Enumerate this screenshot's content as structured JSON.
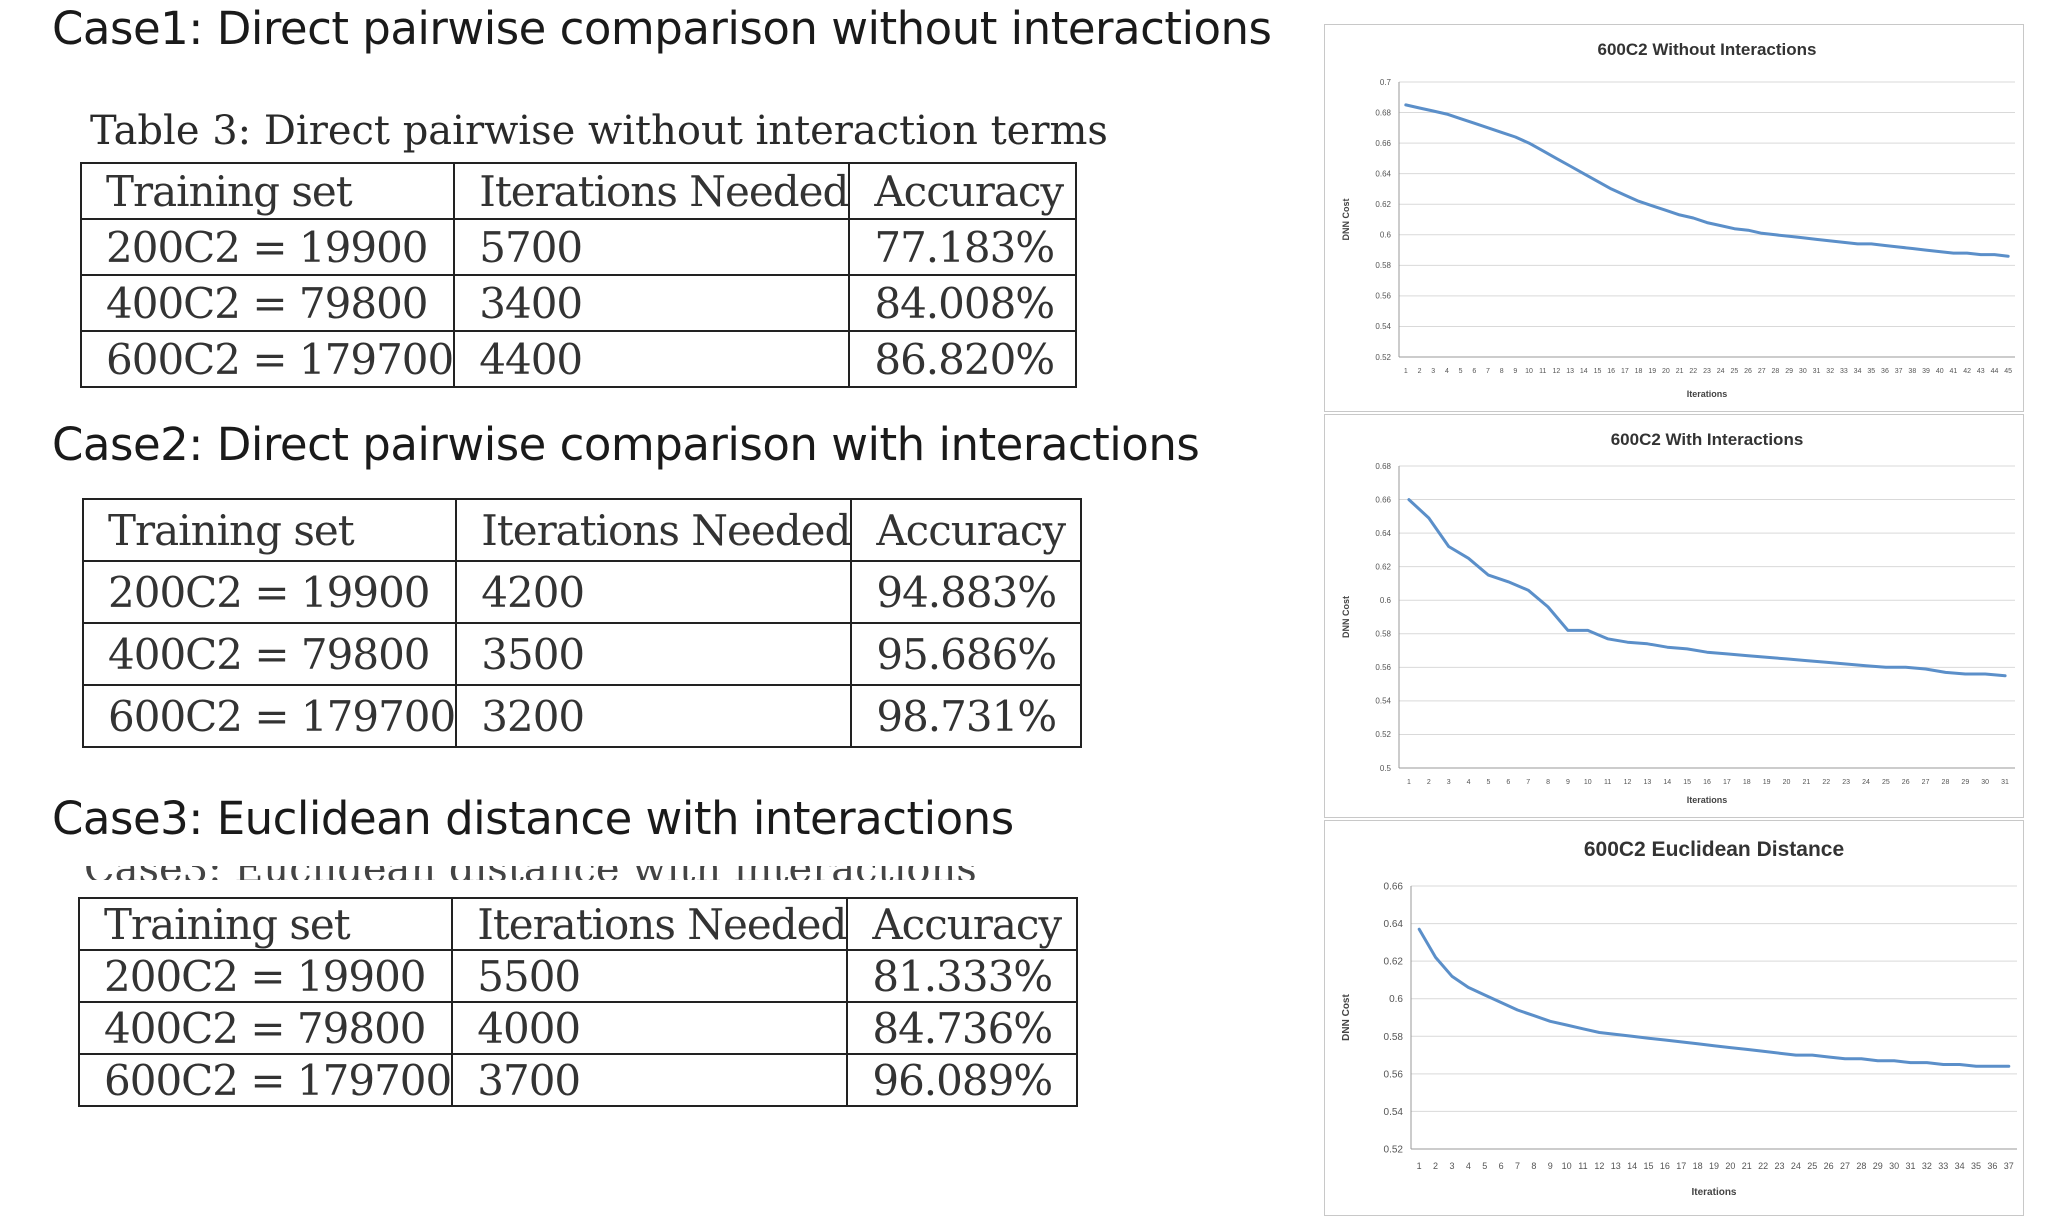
{
  "cases": [
    {
      "heading": "Case1: Direct pairwise comparison without interactions",
      "caption": "Table 3: Direct pairwise without interaction terms",
      "columns": [
        "Training set",
        "Iterations Needed",
        "Accuracy"
      ],
      "rows": [
        [
          "200C2 = 19900",
          "5700",
          "77.183%"
        ],
        [
          "400C2 = 79800",
          "3400",
          "84.008%"
        ],
        [
          "600C2 = 179700",
          "4400",
          "86.820%"
        ]
      ]
    },
    {
      "heading": "Case2: Direct pairwise comparison with interactions",
      "caption": "",
      "columns": [
        "Training set",
        "Iterations Needed",
        "Accuracy"
      ],
      "rows": [
        [
          "200C2 = 19900",
          "4200",
          "94.883%"
        ],
        [
          "400C2 = 79800",
          "3500",
          "95.686%"
        ],
        [
          "600C2 = 179700",
          "3200",
          "98.731%"
        ]
      ]
    },
    {
      "heading": "Case3: Euclidean distance with interactions",
      "caption": "",
      "columns": [
        "Training set",
        "Iterations Needed",
        "Accuracy"
      ],
      "rows": [
        [
          "200C2 = 19900",
          "5500",
          "81.333%"
        ],
        [
          "400C2 = 79800",
          "4000",
          "84.736%"
        ],
        [
          "600C2 = 179700",
          "3700",
          "96.089%"
        ]
      ]
    }
  ],
  "chart_data": [
    {
      "type": "line",
      "title": "600C2 Without Interactions",
      "xlabel": "Iterations",
      "ylabel": "DNN Cost",
      "grid": true,
      "color": "#5b8fc9",
      "ylim": [
        0.52,
        0.7
      ],
      "yticks": [
        "0.52",
        "0.54",
        "0.56",
        "0.58",
        "0.6",
        "0.62",
        "0.64",
        "0.66",
        "0.68",
        "0.7"
      ],
      "x": [
        1,
        2,
        3,
        4,
        5,
        6,
        7,
        8,
        9,
        10,
        11,
        12,
        13,
        14,
        15,
        16,
        17,
        18,
        19,
        20,
        21,
        22,
        23,
        24,
        25,
        26,
        27,
        28,
        29,
        30,
        31,
        32,
        33,
        34,
        35,
        36,
        37,
        38,
        39,
        40,
        41,
        42,
        43,
        44,
        45
      ],
      "values": [
        0.685,
        0.683,
        0.681,
        0.679,
        0.676,
        0.673,
        0.67,
        0.667,
        0.664,
        0.66,
        0.655,
        0.65,
        0.645,
        0.64,
        0.635,
        0.63,
        0.626,
        0.622,
        0.619,
        0.616,
        0.613,
        0.611,
        0.608,
        0.606,
        0.604,
        0.603,
        0.601,
        0.6,
        0.599,
        0.598,
        0.597,
        0.596,
        0.595,
        0.594,
        0.594,
        0.593,
        0.592,
        0.591,
        0.59,
        0.589,
        0.588,
        0.588,
        0.587,
        0.587,
        0.586
      ]
    },
    {
      "type": "line",
      "title": "600C2 With Interactions",
      "xlabel": "Iterations",
      "ylabel": "DNN Cost",
      "grid": true,
      "color": "#5b8fc9",
      "ylim": [
        0.5,
        0.68
      ],
      "yticks": [
        "0.5",
        "0.52",
        "0.54",
        "0.56",
        "0.58",
        "0.6",
        "0.62",
        "0.64",
        "0.66",
        "0.68"
      ],
      "x": [
        1,
        2,
        3,
        4,
        5,
        6,
        7,
        8,
        9,
        10,
        11,
        12,
        13,
        14,
        15,
        16,
        17,
        18,
        19,
        20,
        21,
        22,
        23,
        24,
        25,
        26,
        27,
        28,
        29,
        30,
        31
      ],
      "values": [
        0.66,
        0.649,
        0.632,
        0.625,
        0.615,
        0.611,
        0.606,
        0.596,
        0.582,
        0.582,
        0.577,
        0.575,
        0.574,
        0.572,
        0.571,
        0.569,
        0.568,
        0.567,
        0.566,
        0.565,
        0.564,
        0.563,
        0.562,
        0.561,
        0.56,
        0.56,
        0.559,
        0.557,
        0.556,
        0.556,
        0.555
      ]
    },
    {
      "type": "line",
      "title": "600C2 Euclidean Distance",
      "xlabel": "Iterations",
      "ylabel": "DNN Cost",
      "grid": true,
      "color": "#5b8fc9",
      "ylim": [
        0.52,
        0.66
      ],
      "yticks": [
        "0.52",
        "0.54",
        "0.56",
        "0.58",
        "0.6",
        "0.62",
        "0.64",
        "0.66"
      ],
      "x": [
        1,
        2,
        3,
        4,
        5,
        6,
        7,
        8,
        9,
        10,
        11,
        12,
        13,
        14,
        15,
        16,
        17,
        18,
        19,
        20,
        21,
        22,
        23,
        24,
        25,
        26,
        27,
        28,
        29,
        30,
        31,
        32,
        33,
        34,
        35,
        36,
        37
      ],
      "values": [
        0.637,
        0.622,
        0.612,
        0.606,
        0.602,
        0.598,
        0.594,
        0.591,
        0.588,
        0.586,
        0.584,
        0.582,
        0.581,
        0.58,
        0.579,
        0.578,
        0.577,
        0.576,
        0.575,
        0.574,
        0.573,
        0.572,
        0.571,
        0.57,
        0.57,
        0.569,
        0.568,
        0.568,
        0.567,
        0.567,
        0.566,
        0.566,
        0.565,
        0.565,
        0.564,
        0.564,
        0.564
      ]
    }
  ]
}
